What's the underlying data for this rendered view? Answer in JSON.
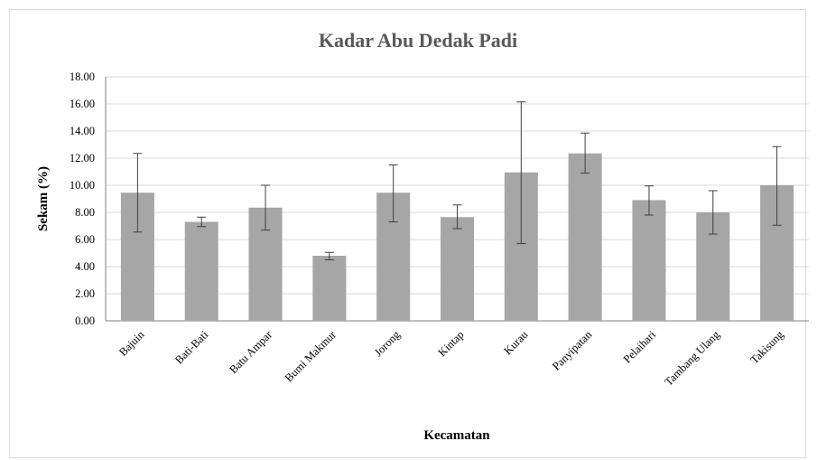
{
  "chart_data": {
    "type": "bar",
    "title": "Kadar Abu Dedak Padi",
    "xlabel": "Kecamatan",
    "ylabel": "Sekam (%)",
    "ylim": [
      0,
      18
    ],
    "y_ticks": [
      "0.00",
      "2.00",
      "4.00",
      "6.00",
      "8.00",
      "10.00",
      "12.00",
      "14.00",
      "16.00",
      "18.00"
    ],
    "grid": true,
    "bar_color": "#a6a6a6",
    "categories": [
      "Bajuin",
      "Bati-Bati",
      "Batu Ampar",
      "Bumi Makmur",
      "Jorong",
      "Kintap",
      "Kurau",
      "Panyipatan",
      "Pelaihari",
      "Tambang Ulang",
      "Takisung"
    ],
    "values": [
      9.45,
      7.3,
      8.35,
      4.8,
      9.45,
      7.65,
      10.95,
      12.35,
      8.9,
      8.0,
      10.0
    ],
    "error_upper": [
      12.35,
      7.65,
      10.0,
      5.05,
      11.5,
      8.55,
      16.15,
      13.85,
      9.95,
      9.6,
      12.85
    ],
    "error_lower": [
      6.55,
      6.95,
      6.7,
      4.5,
      7.3,
      6.8,
      5.7,
      10.9,
      7.8,
      6.4,
      7.05
    ]
  }
}
